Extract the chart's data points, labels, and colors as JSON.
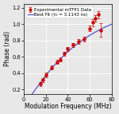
{
  "title": "",
  "xlabel": "Modulation Frequency (MHz)",
  "ylabel": "Phase (rad)",
  "xlim": [
    0,
    80
  ],
  "ylim": [
    0.15,
    1.25
  ],
  "xticks": [
    0,
    20,
    40,
    60,
    80
  ],
  "yticks": [
    0.2,
    0.4,
    0.6,
    0.8,
    1.0,
    1.2
  ],
  "tau": 3.1143e-09,
  "exp_x": [
    15,
    17,
    20,
    25,
    30,
    33,
    37,
    40,
    45,
    50,
    55,
    60,
    63,
    65,
    68,
    70
  ],
  "exp_y": [
    0.27,
    0.32,
    0.38,
    0.47,
    0.54,
    0.57,
    0.64,
    0.7,
    0.75,
    0.79,
    0.82,
    0.95,
    1.02,
    1.07,
    1.12,
    0.93
  ],
  "exp_yerr": [
    0.025,
    0.025,
    0.025,
    0.025,
    0.025,
    0.025,
    0.025,
    0.025,
    0.025,
    0.025,
    0.03,
    0.035,
    0.04,
    0.04,
    0.045,
    0.08
  ],
  "data_color": "#cc0000",
  "fit_color": "#5555cc",
  "legend_label_data": "Experimental mTFP1 Data",
  "legend_label_fit": "Best Fit (τ₀ = 3.1143 ns)",
  "background_color": "#e8e8e8",
  "plot_bg_color": "#e8e8e8",
  "grid_color": "#ffffff",
  "figsize": [
    1.5,
    1.43
  ],
  "dpi": 100,
  "label_fontsize": 5.5,
  "tick_fontsize": 4.8,
  "legend_fontsize": 4.0
}
